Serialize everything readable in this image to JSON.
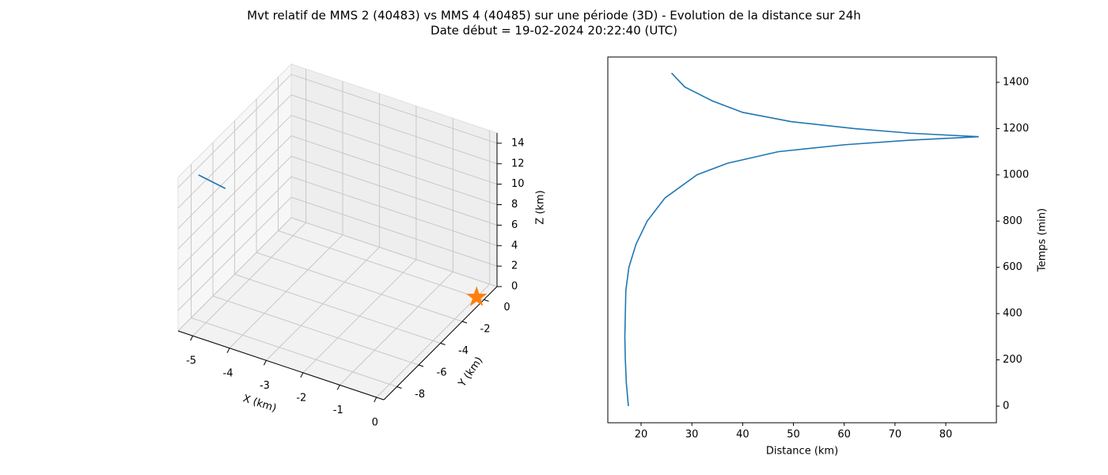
{
  "title": "Mvt relatif de MMS 2 (40483) vs MMS 4 (40485) sur une période (3D) - Evolution de la distance sur 24h",
  "subtitle": "Date début = 19-02-2024 20:22:40 (UTC)",
  "chart_data": [
    {
      "type": "3d",
      "xlabel": "X (km)",
      "ylabel": "Y (km)",
      "zlabel": "Z (km)",
      "xlim": [
        -5.4,
        0.2
      ],
      "ylim": [
        -9.2,
        1.2
      ],
      "zlim": [
        0,
        15
      ],
      "xticks": [
        -5,
        -4,
        -3,
        -2,
        -1,
        0
      ],
      "yticks": [
        -8,
        -6,
        -4,
        -2,
        0
      ],
      "zticks": [
        0,
        2,
        4,
        6,
        8,
        10,
        12,
        14
      ],
      "grid": true,
      "series": [
        {
          "type": "line",
          "color": "#1f77b4",
          "x": [
            -5.2,
            -5.0
          ],
          "y": [
            -8,
            -6.2
          ],
          "z": [
            14.2,
            11.2
          ]
        },
        {
          "type": "marker",
          "color": "#ff7f0e",
          "x": [
            0
          ],
          "y": [
            0
          ],
          "z": [
            0
          ]
        }
      ]
    },
    {
      "type": "line",
      "xlabel": "Distance (km)",
      "ylabel": "Temps (min)",
      "xlim": [
        13.45,
        89.97
      ],
      "ylim": [
        -71.9,
        1509.5
      ],
      "xticks": [
        20,
        30,
        40,
        50,
        60,
        70,
        80
      ],
      "yticks": [
        0,
        200,
        400,
        600,
        800,
        1000,
        1200,
        1400
      ],
      "x": [
        17.5,
        17.1,
        16.9,
        16.8,
        16.9,
        17.0,
        17.6,
        19.0,
        21.2,
        24.7,
        31,
        37,
        47,
        60,
        73,
        86.5,
        73,
        62,
        49.6,
        40,
        34,
        28.6,
        26
      ],
      "series": [
        {
          "color": "#1f77b4",
          "values": [
            0,
            100,
            200,
            300,
            400,
            500,
            600,
            700,
            800,
            900,
            1000,
            1050,
            1100,
            1130,
            1150,
            1165,
            1180,
            1200,
            1230,
            1270,
            1320,
            1380,
            1440
          ]
        }
      ]
    }
  ]
}
